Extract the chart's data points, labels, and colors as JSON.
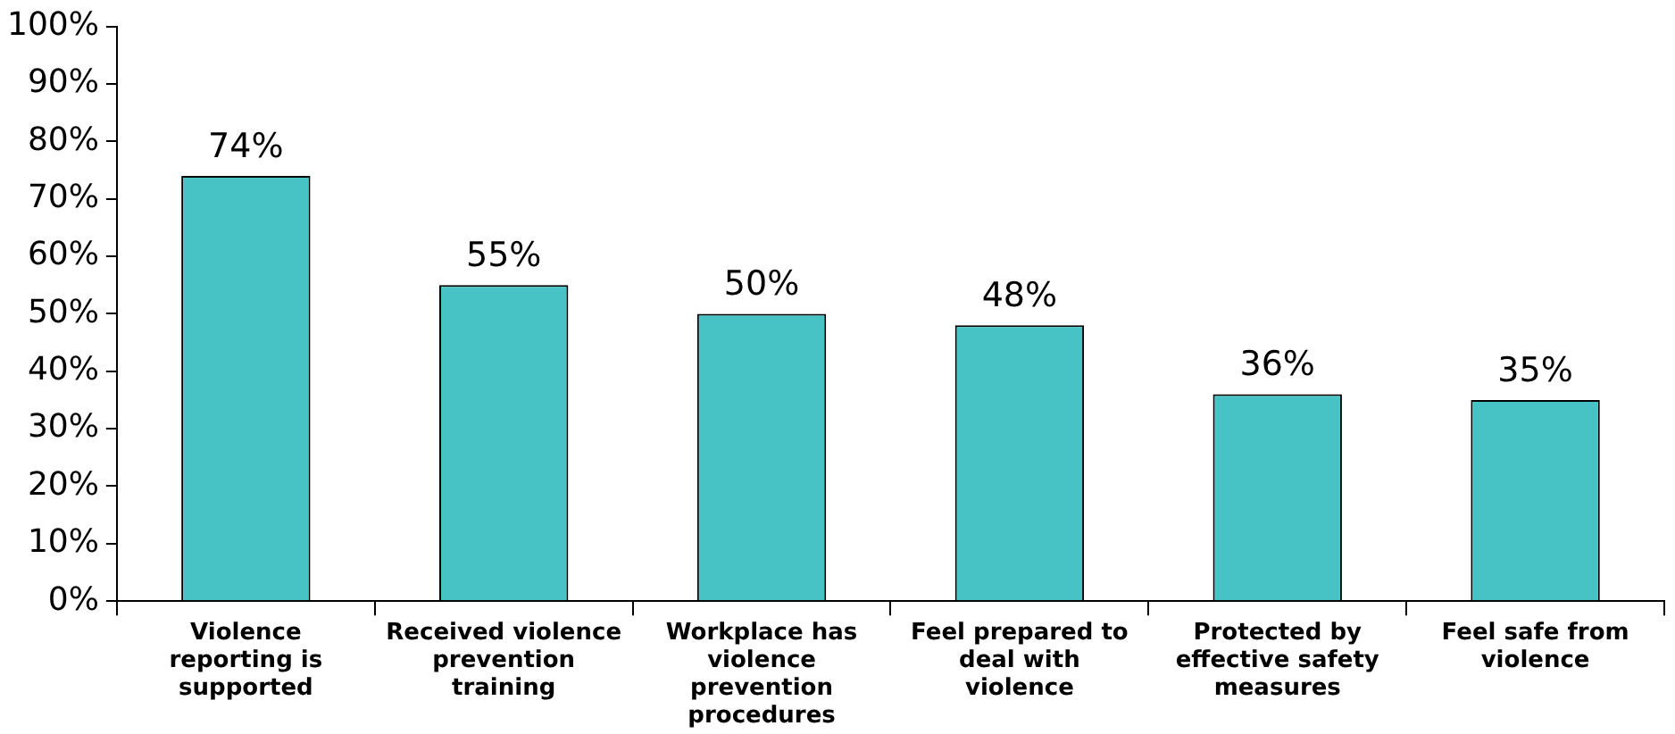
{
  "chart_data": {
    "type": "bar",
    "categories": [
      "Violence reporting is supported",
      "Received violence prevention training",
      "Workplace has violence prevention procedures",
      "Feel prepared to deal with violence",
      "Protected by effective safety measures",
      "Feel safe from violence"
    ],
    "values": [
      74,
      55,
      50,
      48,
      36,
      35
    ],
    "value_labels": [
      "74%",
      "55%",
      "50%",
      "48%",
      "36%",
      "35%"
    ],
    "color": "#47c3c6",
    "ylim": [
      0,
      100
    ],
    "yticks": [
      {
        "value": 0,
        "label": "0%"
      },
      {
        "value": 10,
        "label": "10%"
      },
      {
        "value": 20,
        "label": "20%"
      },
      {
        "value": 30,
        "label": "30%"
      },
      {
        "value": 40,
        "label": "40%"
      },
      {
        "value": 50,
        "label": "50%"
      },
      {
        "value": 60,
        "label": "60%"
      },
      {
        "value": 70,
        "label": "70%"
      },
      {
        "value": 80,
        "label": "80%"
      },
      {
        "value": 90,
        "label": "90%"
      },
      {
        "value": 100,
        "label": "100%"
      }
    ],
    "grid": false,
    "legend": false
  }
}
